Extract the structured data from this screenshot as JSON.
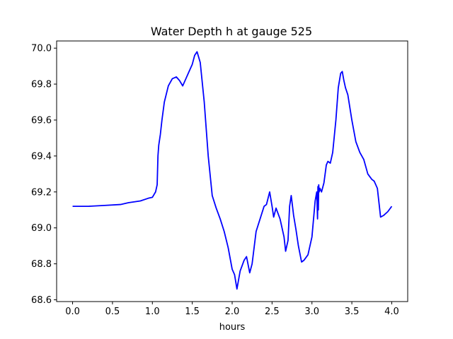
{
  "chart_data": {
    "type": "line",
    "title": "Water Depth h at gauge 525",
    "xlabel": "hours",
    "ylabel": "",
    "xlim": [
      -0.2,
      4.2
    ],
    "ylim": [
      68.59,
      70.04
    ],
    "xticks": [
      0.0,
      0.5,
      1.0,
      1.5,
      2.0,
      2.5,
      3.0,
      3.5,
      4.0
    ],
    "xtick_labels": [
      "0.0",
      "0.5",
      "1.0",
      "1.5",
      "2.0",
      "2.5",
      "3.0",
      "3.5",
      "4.0"
    ],
    "yticks": [
      68.6,
      68.8,
      69.0,
      69.2,
      69.4,
      69.6,
      69.8,
      70.0
    ],
    "ytick_labels": [
      "68.6",
      "68.8",
      "69.0",
      "69.2",
      "69.4",
      "69.6",
      "69.8",
      "70.0"
    ],
    "grid": false,
    "series": [
      {
        "color": "#0000ff",
        "x": [
          0.0,
          0.2,
          0.4,
          0.6,
          0.7,
          0.85,
          0.95,
          1.0,
          1.04,
          1.06,
          1.07,
          1.08,
          1.1,
          1.12,
          1.15,
          1.2,
          1.25,
          1.3,
          1.34,
          1.38,
          1.42,
          1.46,
          1.5,
          1.53,
          1.56,
          1.6,
          1.65,
          1.7,
          1.75,
          1.8,
          1.85,
          1.9,
          1.95,
          2.0,
          2.03,
          2.06,
          2.1,
          2.15,
          2.18,
          2.22,
          2.25,
          2.3,
          2.35,
          2.4,
          2.43,
          2.47,
          2.5,
          2.52,
          2.55,
          2.6,
          2.65,
          2.67,
          2.7,
          2.72,
          2.74,
          2.77,
          2.8,
          2.83,
          2.87,
          2.9,
          2.95,
          3.0,
          3.04,
          3.06,
          3.07,
          3.075,
          3.08,
          3.085,
          3.09,
          3.1,
          3.12,
          3.15,
          3.18,
          3.2,
          3.23,
          3.26,
          3.3,
          3.33,
          3.36,
          3.38,
          3.4,
          3.42,
          3.45,
          3.5,
          3.55,
          3.6,
          3.65,
          3.7,
          3.75,
          3.78,
          3.82,
          3.84,
          3.86,
          3.9,
          3.95,
          4.0
        ],
        "y": [
          69.12,
          69.12,
          69.125,
          69.13,
          69.14,
          69.15,
          69.165,
          69.17,
          69.2,
          69.24,
          69.4,
          69.46,
          69.52,
          69.6,
          69.7,
          69.79,
          69.83,
          69.84,
          69.82,
          69.79,
          69.83,
          69.87,
          69.91,
          69.96,
          69.98,
          69.92,
          69.7,
          69.4,
          69.18,
          69.11,
          69.05,
          68.98,
          68.89,
          68.77,
          68.74,
          68.66,
          68.76,
          68.82,
          68.84,
          68.75,
          68.8,
          68.98,
          69.05,
          69.12,
          69.13,
          69.2,
          69.12,
          69.06,
          69.11,
          69.05,
          68.95,
          68.87,
          68.93,
          69.12,
          69.18,
          69.07,
          68.99,
          68.9,
          68.81,
          68.82,
          68.85,
          68.95,
          69.15,
          69.2,
          69.05,
          69.23,
          69.1,
          69.24,
          69.2,
          69.22,
          69.2,
          69.25,
          69.35,
          69.37,
          69.36,
          69.42,
          69.6,
          69.78,
          69.86,
          69.87,
          69.82,
          69.78,
          69.74,
          69.6,
          69.48,
          69.42,
          69.38,
          69.3,
          69.27,
          69.26,
          69.22,
          69.14,
          69.06,
          69.07,
          69.09,
          69.12
        ]
      }
    ]
  }
}
